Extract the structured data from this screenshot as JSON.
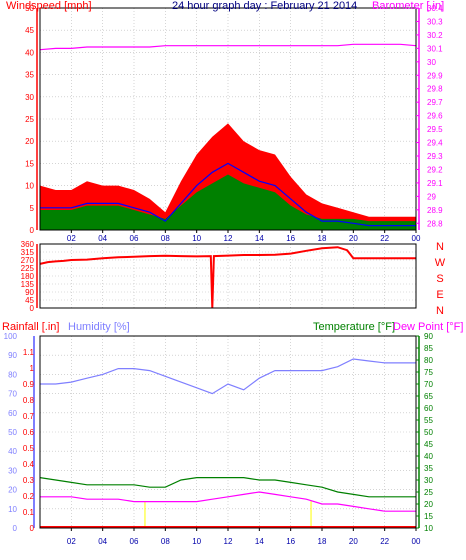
{
  "colors": {
    "wind": "#ff0000",
    "gust_fill": "#ff0000",
    "wind_avg": "#0000ff",
    "wind_speed": "#008000",
    "barometer": "#ff00ff",
    "direction": "#ff0000",
    "rainfall": "#ff0000",
    "humidity": "#7f7fff",
    "temperature": "#008000",
    "dewpoint": "#ff00ff",
    "grid": "#bbbbbb",
    "axis_time": "#0000aa",
    "sun_marker": "#ffff00"
  },
  "chart_data": [
    {
      "type": "line",
      "name_id": "wind-barometer",
      "title": "24 hour graph day : February 21 2014",
      "ylabel_left": "Windspeed [mph]",
      "ylabel_right": "Barometer [.in]",
      "ylim": [
        0,
        50
      ],
      "yticks": [
        0,
        5,
        10,
        15,
        20,
        25,
        30,
        35,
        40,
        45,
        50
      ],
      "y2lim": [
        28.75,
        30.4
      ],
      "y2ticks": [
        28.8,
        28.9,
        29,
        29.1,
        29.2,
        29.3,
        29.4,
        29.5,
        29.6,
        29.7,
        29.8,
        29.9,
        30,
        30.1,
        30.2,
        30.3,
        30.4
      ],
      "xlim": [
        0,
        24
      ],
      "xticks": [
        "02",
        "04",
        "06",
        "08",
        "10",
        "12",
        "14",
        "16",
        "18",
        "20",
        "22",
        "00"
      ],
      "x": [
        0,
        1,
        2,
        3,
        4,
        5,
        6,
        7,
        8,
        9,
        10,
        11,
        12,
        13,
        14,
        15,
        16,
        17,
        18,
        19,
        20,
        21,
        22,
        23,
        24
      ],
      "series": [
        {
          "role": "gust",
          "values": [
            10,
            9,
            9,
            11,
            10,
            10,
            9,
            7,
            4,
            11,
            17,
            21,
            24,
            20,
            18,
            17,
            12,
            8,
            6,
            5,
            4,
            3,
            3,
            3,
            3
          ]
        },
        {
          "role": "average",
          "values": [
            5,
            5,
            5,
            6,
            6,
            6,
            5,
            4,
            2,
            6,
            10,
            13,
            15,
            13,
            11,
            10,
            7,
            4,
            2,
            2,
            1.5,
            1,
            1,
            1,
            1
          ]
        },
        {
          "role": "speed",
          "values": [
            3,
            3,
            3,
            4,
            4,
            4,
            3,
            2,
            1,
            4,
            7,
            9,
            11,
            9,
            8,
            7,
            4,
            2,
            1,
            1,
            1,
            0.5,
            0.5,
            0.5,
            0.5
          ]
        },
        {
          "role": "barometer",
          "axis": "right",
          "values": [
            30.09,
            30.1,
            30.1,
            30.11,
            30.11,
            30.11,
            30.11,
            30.11,
            30.12,
            30.12,
            30.12,
            30.12,
            30.12,
            30.12,
            30.12,
            30.12,
            30.12,
            30.12,
            30.12,
            30.12,
            30.13,
            30.13,
            30.13,
            30.13,
            30.12
          ]
        }
      ]
    },
    {
      "type": "line",
      "name_id": "wind-direction",
      "ylim": [
        0,
        360
      ],
      "yticks": [
        0,
        45,
        90,
        135,
        180,
        225,
        270,
        315,
        360
      ],
      "compass": [
        "N",
        "W",
        "S",
        "E",
        "N"
      ],
      "xlim": [
        0,
        24
      ],
      "x": [
        0,
        0.5,
        1,
        1.5,
        2,
        3,
        4,
        5,
        6,
        7,
        8,
        9,
        10,
        10.9,
        11,
        11.1,
        12,
        13,
        14,
        15,
        16,
        17,
        18,
        19,
        19.6,
        20,
        21,
        22,
        23,
        24
      ],
      "values": [
        248,
        258,
        262,
        265,
        270,
        272,
        280,
        285,
        288,
        292,
        294,
        292,
        290,
        292,
        0,
        292,
        295,
        298,
        298,
        300,
        306,
        322,
        336,
        342,
        325,
        280,
        280,
        280,
        280,
        280
      ]
    },
    {
      "type": "line",
      "name_id": "rain-humidity-temperature",
      "ylabel_rain": "Rainfall [.in]",
      "ylabel_humidity": "Humidity [%]",
      "ylabel_temperature": "Temperature [°F]",
      "ylabel_dewpoint": "Dew Point [°F]",
      "humidity_lim": [
        0,
        100
      ],
      "humidity_ticks": [
        0,
        10,
        20,
        30,
        40,
        50,
        60,
        70,
        80,
        90,
        100
      ],
      "rain_lim": [
        0,
        1.2
      ],
      "rain_ticks": [
        "0",
        "0.1",
        "0.2",
        "0.3",
        "0.4",
        "0.5",
        "0.6",
        "0.7",
        "0.8",
        "0.9",
        "1",
        "1.1"
      ],
      "temp_lim": [
        10,
        90
      ],
      "temp_ticks": [
        10,
        15,
        20,
        25,
        30,
        35,
        40,
        45,
        50,
        55,
        60,
        65,
        70,
        75,
        80,
        85,
        90
      ],
      "xlim": [
        0,
        24
      ],
      "xticks": [
        "02",
        "04",
        "06",
        "08",
        "10",
        "12",
        "14",
        "16",
        "18",
        "20",
        "22",
        "00"
      ],
      "x": [
        0,
        1,
        2,
        3,
        4,
        5,
        6,
        7,
        8,
        9,
        10,
        11,
        12,
        13,
        14,
        15,
        16,
        17,
        18,
        19,
        20,
        21,
        22,
        23,
        24
      ],
      "series": [
        {
          "role": "humidity",
          "values": [
            75,
            75,
            76,
            78,
            80,
            83,
            83,
            82,
            79,
            76,
            73,
            70,
            75,
            72,
            78,
            82,
            82,
            82,
            82,
            84,
            88,
            87,
            86,
            86,
            86
          ]
        },
        {
          "role": "temperature",
          "values": [
            31,
            30,
            29,
            28,
            28,
            28,
            28,
            27,
            27,
            30,
            31,
            31,
            31,
            31,
            30,
            30,
            29,
            28,
            27,
            25,
            24,
            23,
            23,
            23,
            23
          ]
        },
        {
          "role": "dewpoint",
          "values": [
            23,
            23,
            23,
            22,
            22,
            22,
            21,
            21,
            21,
            21,
            21,
            22,
            23,
            24,
            25,
            24,
            23,
            22,
            20,
            20,
            19,
            18,
            17,
            17,
            17
          ]
        },
        {
          "role": "rainfall",
          "values": [
            0,
            0,
            0,
            0,
            0,
            0,
            0,
            0,
            0,
            0,
            0,
            0,
            0,
            0,
            0,
            0,
            0,
            0,
            0,
            0,
            0,
            0,
            0,
            0,
            0
          ]
        }
      ],
      "sun_markers_x": [
        6.7,
        17.3
      ]
    }
  ]
}
